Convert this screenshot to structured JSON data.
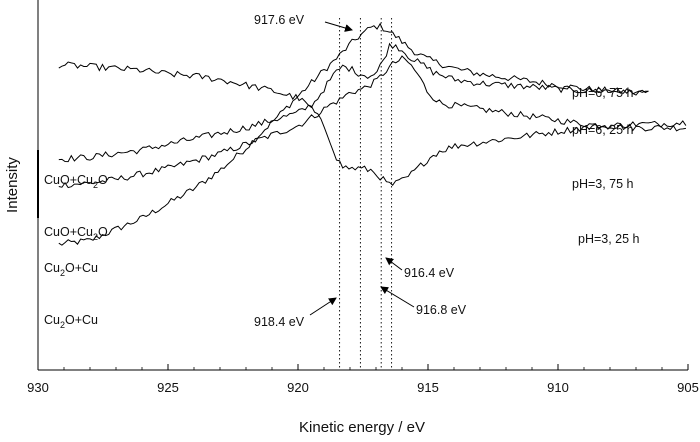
{
  "chart_data": {
    "type": "line",
    "xlabel": "Kinetic energy / eV",
    "ylabel": "Intensity",
    "xlim": [
      930,
      905
    ],
    "x_reversed": true,
    "xticks": [
      930,
      925,
      920,
      915,
      910,
      905
    ],
    "yticks_shown": false,
    "ylim": [
      0,
      1
    ],
    "grid": false,
    "series": [
      {
        "name": "pH=6, 75 h",
        "color": "#000000",
        "points": [
          [
            929.2,
            0.34
          ],
          [
            928,
            0.35
          ],
          [
            927,
            0.38
          ],
          [
            926,
            0.41
          ],
          [
            925,
            0.45
          ],
          [
            924,
            0.49
          ],
          [
            923,
            0.54
          ],
          [
            922,
            0.6
          ],
          [
            921,
            0.67
          ],
          [
            920,
            0.74
          ],
          [
            919,
            0.81
          ],
          [
            918.4,
            0.85
          ],
          [
            918,
            0.88
          ],
          [
            917.6,
            0.905
          ],
          [
            917.2,
            0.925
          ],
          [
            916.9,
            0.93
          ],
          [
            916.6,
            0.92
          ],
          [
            916.2,
            0.9
          ],
          [
            915.8,
            0.875
          ],
          [
            915.4,
            0.855
          ],
          [
            915,
            0.84
          ],
          [
            914.6,
            0.83
          ],
          [
            914,
            0.815
          ],
          [
            913,
            0.8
          ],
          [
            912,
            0.79
          ],
          [
            911,
            0.78
          ],
          [
            910,
            0.77
          ],
          [
            909,
            0.76
          ],
          [
            908,
            0.755
          ],
          [
            907,
            0.75
          ],
          [
            906.5,
            0.75
          ]
        ]
      },
      {
        "name": "pH=6, 25 h",
        "color": "#000000",
        "points": [
          [
            929.2,
            0.5
          ],
          [
            928,
            0.505
          ],
          [
            927,
            0.515
          ],
          [
            926,
            0.53
          ],
          [
            925,
            0.545
          ],
          [
            924,
            0.565
          ],
          [
            923,
            0.585
          ],
          [
            922,
            0.61
          ],
          [
            921,
            0.635
          ],
          [
            920,
            0.66
          ],
          [
            919.3,
            0.69
          ],
          [
            918.8,
            0.715
          ],
          [
            918.4,
            0.73
          ],
          [
            918,
            0.75
          ],
          [
            917.5,
            0.76
          ],
          [
            917,
            0.78
          ],
          [
            916.6,
            0.81
          ],
          [
            916.3,
            0.83
          ],
          [
            916,
            0.84
          ],
          [
            915.8,
            0.835
          ],
          [
            915.4,
            0.8
          ],
          [
            915,
            0.75
          ],
          [
            914.5,
            0.72
          ],
          [
            914,
            0.715
          ],
          [
            913,
            0.705
          ],
          [
            912,
            0.695
          ],
          [
            911,
            0.685
          ],
          [
            910,
            0.675
          ],
          [
            909,
            0.665
          ],
          [
            908,
            0.66
          ],
          [
            907,
            0.655
          ],
          [
            906,
            0.655
          ],
          [
            905,
            0.655
          ]
        ]
      },
      {
        "name": "pH=3, 75 h",
        "color": "#000000",
        "points": [
          [
            929.2,
            0.57
          ],
          [
            928,
            0.575
          ],
          [
            927,
            0.585
          ],
          [
            926,
            0.595
          ],
          [
            925,
            0.61
          ],
          [
            924,
            0.625
          ],
          [
            923,
            0.64
          ],
          [
            922,
            0.655
          ],
          [
            921,
            0.675
          ],
          [
            920,
            0.695
          ],
          [
            919.4,
            0.72
          ],
          [
            919,
            0.76
          ],
          [
            918.6,
            0.8
          ],
          [
            918.3,
            0.82
          ],
          [
            918,
            0.815
          ],
          [
            917.6,
            0.8
          ],
          [
            917.3,
            0.795
          ],
          [
            917,
            0.8
          ],
          [
            916.7,
            0.84
          ],
          [
            916.5,
            0.875
          ],
          [
            916.3,
            0.88
          ],
          [
            916,
            0.865
          ],
          [
            915.6,
            0.84
          ],
          [
            915.2,
            0.825
          ],
          [
            914.8,
            0.805
          ],
          [
            914.4,
            0.795
          ],
          [
            914,
            0.785
          ],
          [
            913,
            0.775
          ],
          [
            912,
            0.77
          ],
          [
            911,
            0.765
          ],
          [
            910,
            0.76
          ],
          [
            909,
            0.755
          ],
          [
            908,
            0.755
          ],
          [
            907,
            0.75
          ],
          [
            906.5,
            0.75
          ]
        ]
      },
      {
        "name": "pH=3, 25 h",
        "color": "#000000",
        "points": [
          [
            929.2,
            0.825
          ],
          [
            928,
            0.82
          ],
          [
            927,
            0.815
          ],
          [
            926,
            0.81
          ],
          [
            925,
            0.8
          ],
          [
            924,
            0.795
          ],
          [
            923,
            0.785
          ],
          [
            922,
            0.77
          ],
          [
            921,
            0.755
          ],
          [
            920,
            0.735
          ],
          [
            919.5,
            0.71
          ],
          [
            919,
            0.66
          ],
          [
            918.7,
            0.61
          ],
          [
            918.5,
            0.57
          ],
          [
            918.3,
            0.55
          ],
          [
            918,
            0.545
          ],
          [
            917.6,
            0.545
          ],
          [
            917.2,
            0.54
          ],
          [
            916.8,
            0.52
          ],
          [
            916.6,
            0.505
          ],
          [
            916.4,
            0.5
          ],
          [
            916.2,
            0.505
          ],
          [
            915.8,
            0.52
          ],
          [
            915.4,
            0.545
          ],
          [
            915,
            0.57
          ],
          [
            914.6,
            0.59
          ],
          [
            914,
            0.605
          ],
          [
            913,
            0.615
          ],
          [
            912,
            0.625
          ],
          [
            911,
            0.635
          ],
          [
            910,
            0.645
          ],
          [
            909,
            0.655
          ],
          [
            908,
            0.66
          ],
          [
            907,
            0.665
          ],
          [
            906,
            0.665
          ],
          [
            905,
            0.67
          ]
        ]
      }
    ],
    "reference_lines": [
      918.4,
      917.6,
      916.8,
      916.4
    ],
    "curve_labels": [
      {
        "text": "pH=6, 75 h"
      },
      {
        "text": "pH=6, 25 h"
      },
      {
        "text": "pH=3, 75 h"
      },
      {
        "text": "pH=3, 25 h"
      }
    ],
    "phase_labels": [
      {
        "main": "CuO+Cu",
        "sub": "2",
        "tail": "O"
      },
      {
        "main": "CuO+Cu",
        "sub": "2",
        "tail": "O"
      },
      {
        "main": "Cu",
        "sub": "2",
        "tail": "O+Cu"
      },
      {
        "main": "Cu",
        "sub": "2",
        "tail": "O+Cu"
      }
    ],
    "annotations": [
      {
        "text": "917.6 eV",
        "target": 917.6
      },
      {
        "text": "916.4 eV",
        "target": 916.4
      },
      {
        "text": "916.8 eV",
        "target": 916.8
      },
      {
        "text": "918.4 eV",
        "target": 918.4
      }
    ]
  }
}
